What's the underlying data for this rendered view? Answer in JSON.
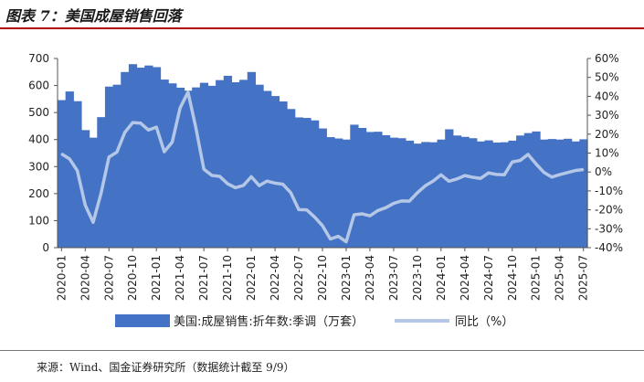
{
  "figure_title": "图表 7：美国成屋销售回落",
  "source_note": "来源：Wind、国金证券研究所（数据统计截至 9/9）",
  "chart_data": {
    "type": "bar+line",
    "title": "",
    "xlabel": "",
    "ylabel": "",
    "ylim": [
      0,
      700
    ],
    "y_ticks": [
      "0",
      "100",
      "200",
      "300",
      "400",
      "500",
      "600",
      "700"
    ],
    "y2lim": [
      -40,
      60
    ],
    "y2_ticks": [
      "-40%",
      "-30%",
      "-20%",
      "-10%",
      "0%",
      "10%",
      "20%",
      "30%",
      "40%",
      "50%",
      "60%"
    ],
    "x_tick_labels": [
      "2020-01",
      "2020-04",
      "2020-07",
      "2020-10",
      "2021-01",
      "2021-04",
      "2021-07",
      "2021-10",
      "2022-01",
      "2022-04",
      "2022-07",
      "2022-10",
      "2023-01",
      "2023-04",
      "2023-07",
      "2023-10",
      "2024-01",
      "2024-04",
      "2024-07",
      "2024-10",
      "2025-01",
      "2025-04",
      "2025-07"
    ],
    "categories": [
      "2020-01",
      "2020-02",
      "2020-03",
      "2020-04",
      "2020-05",
      "2020-06",
      "2020-07",
      "2020-08",
      "2020-09",
      "2020-10",
      "2020-11",
      "2020-12",
      "2021-01",
      "2021-02",
      "2021-03",
      "2021-04",
      "2021-05",
      "2021-06",
      "2021-07",
      "2021-08",
      "2021-09",
      "2021-10",
      "2021-11",
      "2021-12",
      "2022-01",
      "2022-02",
      "2022-03",
      "2022-04",
      "2022-05",
      "2022-06",
      "2022-07",
      "2022-08",
      "2022-09",
      "2022-10",
      "2022-11",
      "2022-12",
      "2023-01",
      "2023-02",
      "2023-03",
      "2023-04",
      "2023-05",
      "2023-06",
      "2023-07",
      "2023-08",
      "2023-09",
      "2023-10",
      "2023-11",
      "2023-12",
      "2024-01",
      "2024-02",
      "2024-03",
      "2024-04",
      "2024-05",
      "2024-06",
      "2024-07",
      "2024-08",
      "2024-09",
      "2024-10",
      "2024-11",
      "2024-12",
      "2025-01",
      "2025-02",
      "2025-03",
      "2025-04",
      "2025-05",
      "2025-06",
      "2025-07"
    ],
    "series": [
      {
        "name": "美国:成屋销售:折年数:季调（万套）",
        "type": "area",
        "axis": "left",
        "color": "#4472c4",
        "values": [
          546,
          578,
          542,
          435,
          407,
          483,
          596,
          603,
          650,
          679,
          666,
          674,
          668,
          622,
          608,
          592,
          581,
          593,
          610,
          599,
          620,
          636,
          612,
          621,
          650,
          603,
          580,
          561,
          541,
          513,
          482,
          480,
          471,
          441,
          409,
          404,
          400,
          455,
          443,
          428,
          429,
          416,
          407,
          405,
          396,
          385,
          391,
          390,
          400,
          438,
          415,
          410,
          405,
          393,
          397,
          389,
          390,
          396,
          415,
          424,
          430,
          400,
          402,
          400,
          403,
          393,
          401
        ]
      },
      {
        "name": "同比（%）",
        "type": "line",
        "axis": "right",
        "color": "#b4c7e7",
        "values": [
          9.6,
          7.0,
          0.7,
          -17.5,
          -26.6,
          -11.3,
          7.9,
          10.5,
          20.9,
          26.1,
          25.8,
          22.2,
          23.7,
          10.7,
          15.8,
          33.9,
          42.2,
          23.2,
          1.5,
          -1.8,
          -2.3,
          -6.2,
          -8.3,
          -7.1,
          -2.5,
          -7.2,
          -4.8,
          -5.9,
          -6.5,
          -11.0,
          -19.9,
          -20.0,
          -23.8,
          -28.4,
          -35.4,
          -34.0,
          -36.9,
          -22.6,
          -22.1,
          -23.2,
          -20.4,
          -18.9,
          -16.6,
          -15.3,
          -15.4,
          -11.0,
          -7.3,
          -4.8,
          -1.5,
          -4.9,
          -3.7,
          -1.9,
          -2.8,
          -3.4,
          -0.5,
          -1.3,
          -1.5,
          5.3,
          6.1,
          9.3,
          4.3,
          -0.2,
          -2.7,
          -1.4,
          -0.3,
          0.8,
          1.3
        ]
      }
    ],
    "legend_position": "bottom",
    "grid": false
  }
}
